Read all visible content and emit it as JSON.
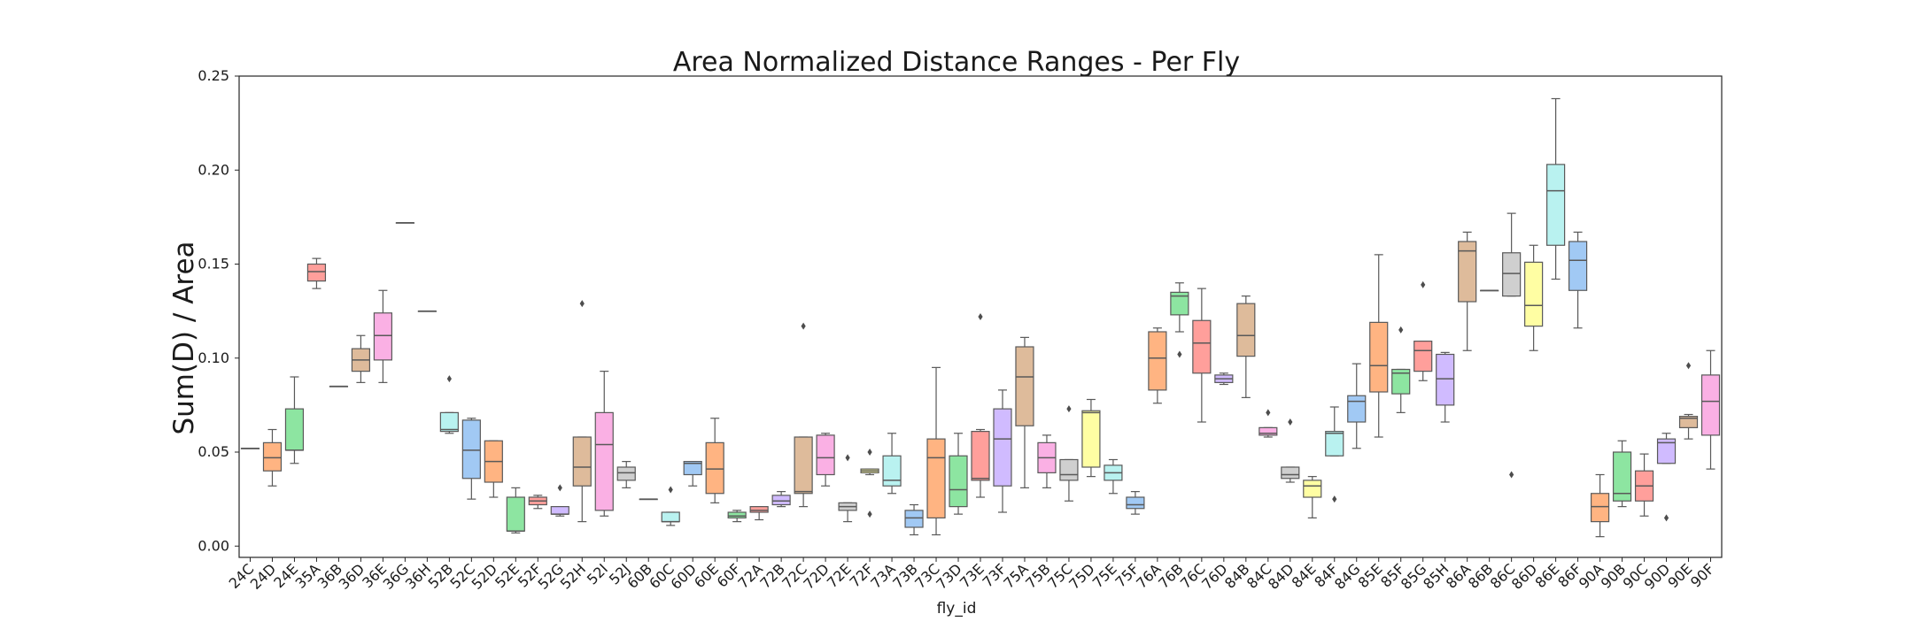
{
  "chart_data": {
    "type": "box",
    "title": "Area Normalized Distance Ranges - Per Fly",
    "xlabel": "fly_id",
    "ylabel": "Sum(D) / Area",
    "ylim": [
      -0.006,
      0.25
    ],
    "yticks": [
      "0.00",
      "0.05",
      "0.10",
      "0.15",
      "0.20",
      "0.25"
    ],
    "grid": false,
    "palette": [
      "#a1c9f4",
      "#ffb482",
      "#8de5a1",
      "#ff9f9b",
      "#d0bbff",
      "#debb9b",
      "#fab0e4",
      "#cfcfcf",
      "#fffea3",
      "#b9f2f0"
    ],
    "categories": [
      "24C",
      "24D",
      "24E",
      "35A",
      "36B",
      "36D",
      "36E",
      "36G",
      "36H",
      "52B",
      "52C",
      "52D",
      "52E",
      "52F",
      "52G",
      "52H",
      "52I",
      "52J",
      "60B",
      "60C",
      "60D",
      "60E",
      "60F",
      "72A",
      "72B",
      "72C",
      "72D",
      "72E",
      "72F",
      "73A",
      "73B",
      "73C",
      "73D",
      "73E",
      "73F",
      "75A",
      "75B",
      "75C",
      "75D",
      "75E",
      "75F",
      "76A",
      "76B",
      "76C",
      "76D",
      "84B",
      "84C",
      "84D",
      "84E",
      "84F",
      "84G",
      "85E",
      "85F",
      "85G",
      "85H",
      "86A",
      "86B",
      "86C",
      "86D",
      "86E",
      "86F",
      "90A",
      "90B",
      "90C",
      "90D",
      "90E",
      "90F"
    ],
    "boxes": [
      {
        "q1": 0.052,
        "median": 0.052,
        "q3": 0.052,
        "whislo": 0.052,
        "whishi": 0.052,
        "fliers": []
      },
      {
        "q1": 0.04,
        "median": 0.047,
        "q3": 0.055,
        "whislo": 0.032,
        "whishi": 0.062,
        "fliers": []
      },
      {
        "q1": 0.051,
        "median": 0.051,
        "q3": 0.073,
        "whislo": 0.044,
        "whishi": 0.09,
        "fliers": []
      },
      {
        "q1": 0.141,
        "median": 0.146,
        "q3": 0.15,
        "whislo": 0.137,
        "whishi": 0.153,
        "fliers": []
      },
      {
        "q1": 0.085,
        "median": 0.085,
        "q3": 0.085,
        "whislo": 0.085,
        "whishi": 0.085,
        "fliers": []
      },
      {
        "q1": 0.093,
        "median": 0.099,
        "q3": 0.105,
        "whislo": 0.087,
        "whishi": 0.112,
        "fliers": []
      },
      {
        "q1": 0.099,
        "median": 0.112,
        "q3": 0.124,
        "whislo": 0.087,
        "whishi": 0.136,
        "fliers": []
      },
      {
        "q1": 0.172,
        "median": 0.172,
        "q3": 0.172,
        "whislo": 0.172,
        "whishi": 0.172,
        "fliers": []
      },
      {
        "q1": 0.125,
        "median": 0.125,
        "q3": 0.125,
        "whislo": 0.125,
        "whishi": 0.125,
        "fliers": []
      },
      {
        "q1": 0.061,
        "median": 0.062,
        "q3": 0.071,
        "whislo": 0.06,
        "whishi": 0.071,
        "fliers": [
          0.089
        ]
      },
      {
        "q1": 0.036,
        "median": 0.051,
        "q3": 0.067,
        "whislo": 0.025,
        "whishi": 0.068,
        "fliers": []
      },
      {
        "q1": 0.034,
        "median": 0.045,
        "q3": 0.056,
        "whislo": 0.026,
        "whishi": 0.056,
        "fliers": []
      },
      {
        "q1": 0.008,
        "median": 0.008,
        "q3": 0.026,
        "whislo": 0.007,
        "whishi": 0.031,
        "fliers": []
      },
      {
        "q1": 0.022,
        "median": 0.024,
        "q3": 0.026,
        "whislo": 0.02,
        "whishi": 0.027,
        "fliers": []
      },
      {
        "q1": 0.017,
        "median": 0.017,
        "q3": 0.021,
        "whislo": 0.016,
        "whishi": 0.021,
        "fliers": [
          0.031
        ]
      },
      {
        "q1": 0.032,
        "median": 0.042,
        "q3": 0.058,
        "whislo": 0.013,
        "whishi": 0.058,
        "fliers": [
          0.129
        ]
      },
      {
        "q1": 0.019,
        "median": 0.054,
        "q3": 0.071,
        "whislo": 0.016,
        "whishi": 0.093,
        "fliers": []
      },
      {
        "q1": 0.035,
        "median": 0.039,
        "q3": 0.042,
        "whislo": 0.031,
        "whishi": 0.045,
        "fliers": []
      },
      {
        "q1": 0.025,
        "median": 0.025,
        "q3": 0.025,
        "whislo": 0.025,
        "whishi": 0.025,
        "fliers": []
      },
      {
        "q1": 0.013,
        "median": 0.013,
        "q3": 0.018,
        "whislo": 0.011,
        "whishi": 0.018,
        "fliers": [
          0.03
        ]
      },
      {
        "q1": 0.038,
        "median": 0.044,
        "q3": 0.045,
        "whislo": 0.032,
        "whishi": 0.045,
        "fliers": []
      },
      {
        "q1": 0.028,
        "median": 0.041,
        "q3": 0.055,
        "whislo": 0.023,
        "whishi": 0.068,
        "fliers": []
      },
      {
        "q1": 0.015,
        "median": 0.016,
        "q3": 0.018,
        "whislo": 0.013,
        "whishi": 0.019,
        "fliers": []
      },
      {
        "q1": 0.018,
        "median": 0.019,
        "q3": 0.021,
        "whislo": 0.014,
        "whishi": 0.021,
        "fliers": []
      },
      {
        "q1": 0.022,
        "median": 0.024,
        "q3": 0.027,
        "whislo": 0.021,
        "whishi": 0.029,
        "fliers": []
      },
      {
        "q1": 0.028,
        "median": 0.029,
        "q3": 0.058,
        "whislo": 0.021,
        "whishi": 0.058,
        "fliers": [
          0.117
        ]
      },
      {
        "q1": 0.038,
        "median": 0.047,
        "q3": 0.059,
        "whislo": 0.032,
        "whishi": 0.06,
        "fliers": []
      },
      {
        "q1": 0.019,
        "median": 0.021,
        "q3": 0.023,
        "whislo": 0.013,
        "whishi": 0.023,
        "fliers": [
          0.047
        ]
      },
      {
        "q1": 0.039,
        "median": 0.04,
        "q3": 0.041,
        "whislo": 0.038,
        "whishi": 0.041,
        "fliers": [
          0.05,
          0.017
        ]
      },
      {
        "q1": 0.032,
        "median": 0.035,
        "q3": 0.048,
        "whislo": 0.028,
        "whishi": 0.06,
        "fliers": []
      },
      {
        "q1": 0.01,
        "median": 0.015,
        "q3": 0.019,
        "whislo": 0.006,
        "whishi": 0.022,
        "fliers": []
      },
      {
        "q1": 0.015,
        "median": 0.047,
        "q3": 0.057,
        "whislo": 0.006,
        "whishi": 0.095,
        "fliers": []
      },
      {
        "q1": 0.021,
        "median": 0.03,
        "q3": 0.048,
        "whislo": 0.017,
        "whishi": 0.06,
        "fliers": []
      },
      {
        "q1": 0.035,
        "median": 0.036,
        "q3": 0.061,
        "whislo": 0.026,
        "whishi": 0.062,
        "fliers": [
          0.122
        ]
      },
      {
        "q1": 0.032,
        "median": 0.057,
        "q3": 0.073,
        "whislo": 0.018,
        "whishi": 0.083,
        "fliers": []
      },
      {
        "q1": 0.064,
        "median": 0.09,
        "q3": 0.106,
        "whislo": 0.031,
        "whishi": 0.111,
        "fliers": []
      },
      {
        "q1": 0.039,
        "median": 0.047,
        "q3": 0.055,
        "whislo": 0.031,
        "whishi": 0.059,
        "fliers": []
      },
      {
        "q1": 0.035,
        "median": 0.038,
        "q3": 0.046,
        "whislo": 0.024,
        "whishi": 0.046,
        "fliers": [
          0.073
        ]
      },
      {
        "q1": 0.042,
        "median": 0.071,
        "q3": 0.072,
        "whislo": 0.037,
        "whishi": 0.078,
        "fliers": []
      },
      {
        "q1": 0.035,
        "median": 0.039,
        "q3": 0.043,
        "whislo": 0.028,
        "whishi": 0.046,
        "fliers": []
      },
      {
        "q1": 0.02,
        "median": 0.022,
        "q3": 0.026,
        "whislo": 0.017,
        "whishi": 0.029,
        "fliers": []
      },
      {
        "q1": 0.083,
        "median": 0.1,
        "q3": 0.114,
        "whislo": 0.076,
        "whishi": 0.116,
        "fliers": []
      },
      {
        "q1": 0.123,
        "median": 0.133,
        "q3": 0.135,
        "whislo": 0.114,
        "whishi": 0.14,
        "fliers": [
          0.102
        ]
      },
      {
        "q1": 0.092,
        "median": 0.108,
        "q3": 0.12,
        "whislo": 0.066,
        "whishi": 0.137,
        "fliers": []
      },
      {
        "q1": 0.087,
        "median": 0.089,
        "q3": 0.091,
        "whislo": 0.086,
        "whishi": 0.092,
        "fliers": []
      },
      {
        "q1": 0.101,
        "median": 0.112,
        "q3": 0.129,
        "whislo": 0.079,
        "whishi": 0.133,
        "fliers": []
      },
      {
        "q1": 0.059,
        "median": 0.06,
        "q3": 0.063,
        "whislo": 0.058,
        "whishi": 0.063,
        "fliers": [
          0.071
        ]
      },
      {
        "q1": 0.036,
        "median": 0.038,
        "q3": 0.042,
        "whislo": 0.034,
        "whishi": 0.042,
        "fliers": [
          0.066
        ]
      },
      {
        "q1": 0.026,
        "median": 0.032,
        "q3": 0.035,
        "whislo": 0.015,
        "whishi": 0.037,
        "fliers": []
      },
      {
        "q1": 0.048,
        "median": 0.06,
        "q3": 0.061,
        "whislo": 0.048,
        "whishi": 0.074,
        "fliers": [
          0.025
        ]
      },
      {
        "q1": 0.066,
        "median": 0.077,
        "q3": 0.08,
        "whislo": 0.052,
        "whishi": 0.097,
        "fliers": []
      },
      {
        "q1": 0.082,
        "median": 0.096,
        "q3": 0.119,
        "whislo": 0.058,
        "whishi": 0.155,
        "fliers": []
      },
      {
        "q1": 0.081,
        "median": 0.092,
        "q3": 0.094,
        "whislo": 0.071,
        "whishi": 0.094,
        "fliers": [
          0.115
        ]
      },
      {
        "q1": 0.093,
        "median": 0.104,
        "q3": 0.109,
        "whislo": 0.088,
        "whishi": 0.109,
        "fliers": [
          0.139
        ]
      },
      {
        "q1": 0.075,
        "median": 0.089,
        "q3": 0.102,
        "whislo": 0.066,
        "whishi": 0.103,
        "fliers": []
      },
      {
        "q1": 0.13,
        "median": 0.157,
        "q3": 0.162,
        "whislo": 0.104,
        "whishi": 0.167,
        "fliers": []
      },
      {
        "q1": 0.136,
        "median": 0.136,
        "q3": 0.136,
        "whislo": 0.136,
        "whishi": 0.136,
        "fliers": []
      },
      {
        "q1": 0.133,
        "median": 0.145,
        "q3": 0.156,
        "whislo": 0.133,
        "whishi": 0.177,
        "fliers": [
          0.038
        ]
      },
      {
        "q1": 0.117,
        "median": 0.128,
        "q3": 0.151,
        "whislo": 0.104,
        "whishi": 0.16,
        "fliers": []
      },
      {
        "q1": 0.16,
        "median": 0.189,
        "q3": 0.203,
        "whislo": 0.142,
        "whishi": 0.238,
        "fliers": []
      },
      {
        "q1": 0.136,
        "median": 0.152,
        "q3": 0.162,
        "whislo": 0.116,
        "whishi": 0.167,
        "fliers": []
      },
      {
        "q1": 0.013,
        "median": 0.021,
        "q3": 0.028,
        "whislo": 0.005,
        "whishi": 0.038,
        "fliers": []
      },
      {
        "q1": 0.024,
        "median": 0.028,
        "q3": 0.05,
        "whislo": 0.021,
        "whishi": 0.056,
        "fliers": []
      },
      {
        "q1": 0.024,
        "median": 0.032,
        "q3": 0.04,
        "whislo": 0.016,
        "whishi": 0.049,
        "fliers": []
      },
      {
        "q1": 0.044,
        "median": 0.055,
        "q3": 0.057,
        "whislo": 0.044,
        "whishi": 0.06,
        "fliers": [
          0.015
        ]
      },
      {
        "q1": 0.063,
        "median": 0.068,
        "q3": 0.069,
        "whislo": 0.057,
        "whishi": 0.07,
        "fliers": [
          0.096
        ]
      },
      {
        "q1": 0.059,
        "median": 0.077,
        "q3": 0.091,
        "whislo": 0.041,
        "whishi": 0.104,
        "fliers": []
      }
    ]
  }
}
